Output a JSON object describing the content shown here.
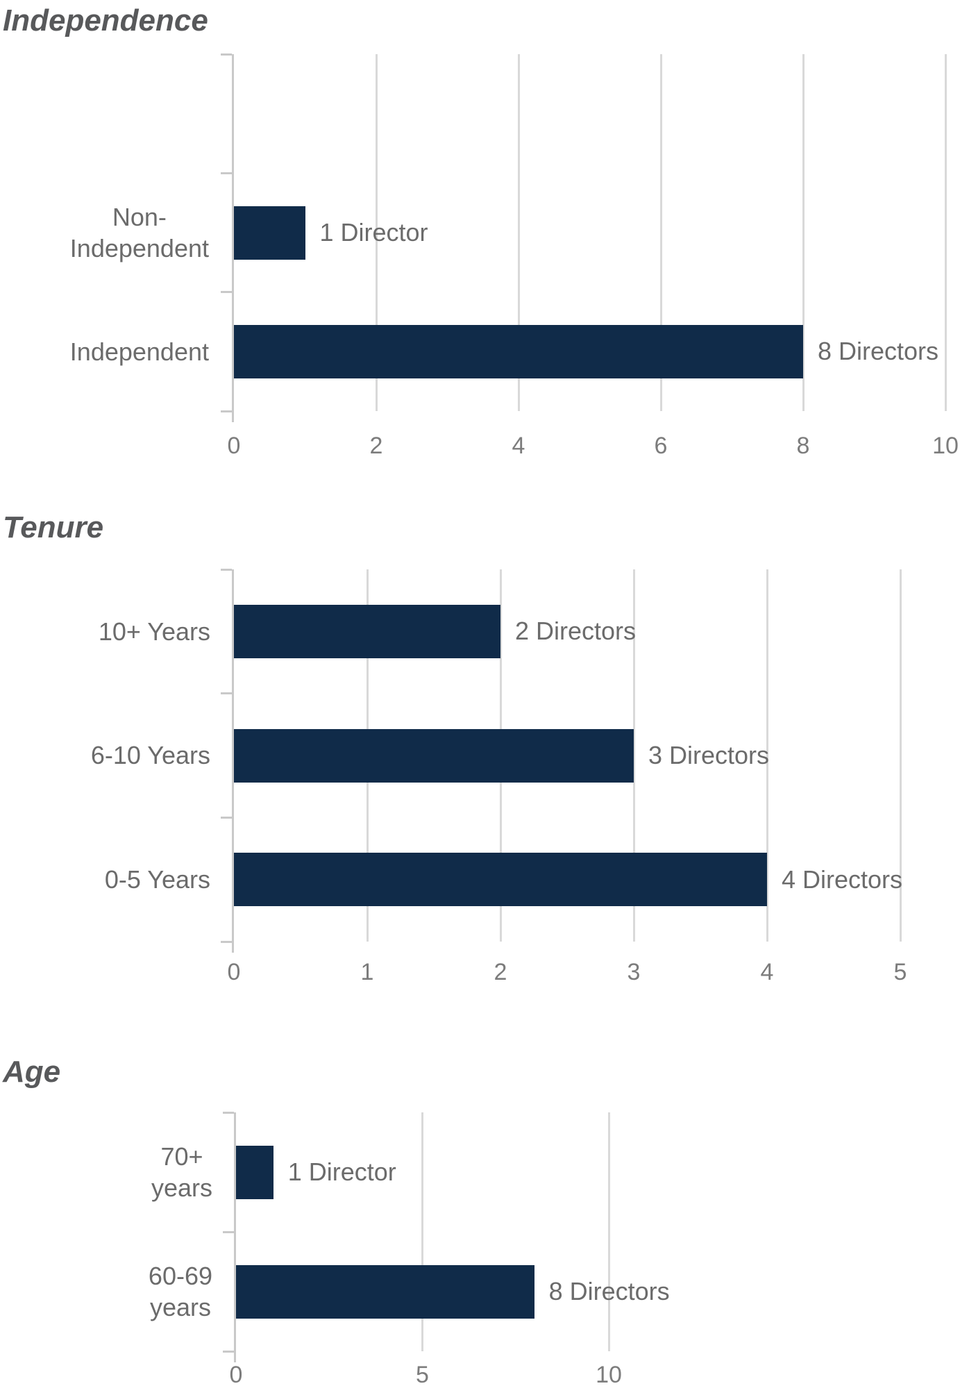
{
  "colors": {
    "bar": "#102B49",
    "grid": "#D9D9D9",
    "axis": "#C9C9C9",
    "title": "#58595B",
    "label": "#6B6B6B",
    "tick_label": "#7C7C7C",
    "background": "#FFFFFF"
  },
  "chart_data": [
    {
      "type": "bar",
      "orientation": "horizontal",
      "title": "Independence",
      "categories": [
        "Non-Independent",
        "Independent"
      ],
      "label_lines": [
        [
          "Non-",
          "Independent"
        ],
        [
          "Independent"
        ]
      ],
      "values": [
        1,
        8
      ],
      "data_labels": [
        "1 Director",
        "8 Directors"
      ],
      "xlim": [
        0,
        10
      ],
      "xticks": [
        "0",
        "2",
        "4",
        "6",
        "8",
        "10"
      ],
      "grid": true,
      "legend": false
    },
    {
      "type": "bar",
      "orientation": "horizontal",
      "title": "Tenure",
      "categories": [
        "10+ Years",
        "6-10 Years",
        "0-5 Years"
      ],
      "label_lines": [
        [
          "10+ Years"
        ],
        [
          "6-10 Years"
        ],
        [
          "0-5 Years"
        ]
      ],
      "values": [
        2,
        3,
        4
      ],
      "data_labels": [
        "2 Directors",
        "3 Directors",
        "4 Directors"
      ],
      "xlim": [
        0,
        5
      ],
      "xticks": [
        "0",
        "1",
        "2",
        "3",
        "4",
        "5"
      ],
      "grid": true,
      "legend": false
    },
    {
      "type": "bar",
      "orientation": "horizontal",
      "title": "Age",
      "categories": [
        "70+ years",
        "60-69 years"
      ],
      "label_lines": [
        [
          "70+",
          "years"
        ],
        [
          "60-69",
          "years"
        ]
      ],
      "values": [
        1,
        8
      ],
      "data_labels": [
        "1 Director",
        "8 Directors"
      ],
      "xlim": [
        0,
        10
      ],
      "xticks": [
        "0",
        "5",
        "10"
      ],
      "grid": true,
      "legend": false
    }
  ]
}
